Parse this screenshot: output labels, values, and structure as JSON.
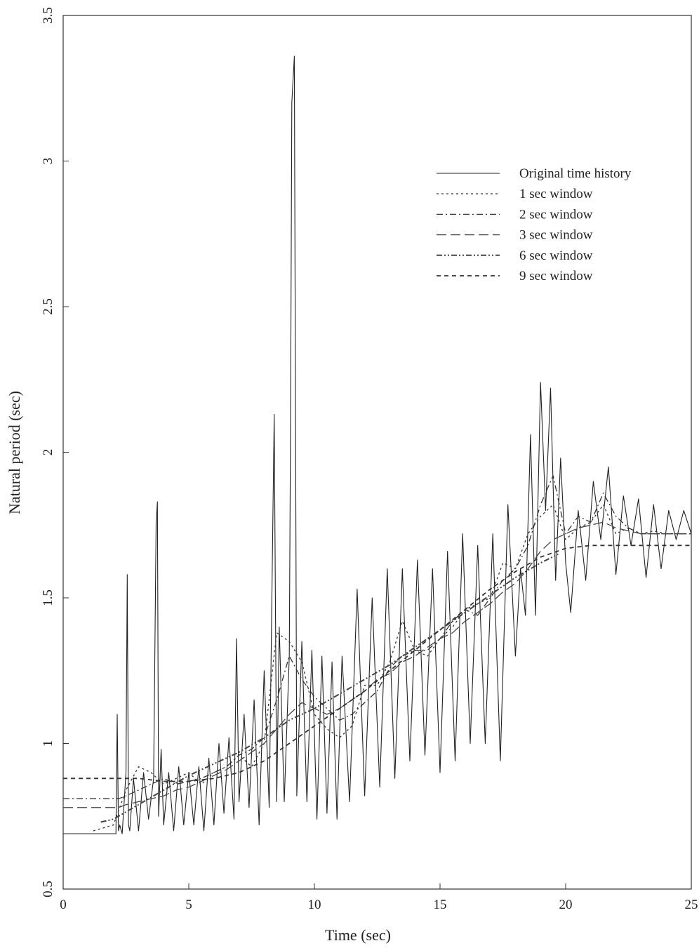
{
  "chart_data": {
    "type": "line",
    "title": "",
    "xlabel": "Time (sec)",
    "ylabel": "Natural period (sec)",
    "xlim": [
      0,
      25
    ],
    "ylim": [
      0.5,
      3.5
    ],
    "xticks": [
      0,
      5,
      10,
      15,
      20,
      25
    ],
    "xtick_labels": [
      "0",
      "5",
      "10",
      "15",
      "20",
      "25"
    ],
    "yticks": [
      0.5,
      1,
      1.5,
      2,
      2.5,
      3,
      3.5
    ],
    "ytick_labels": [
      "0.5",
      "1",
      "1.5",
      "2",
      "2.5",
      "3",
      "3.5"
    ],
    "grid": false,
    "legend_position": "top-right",
    "series": [
      {
        "name": "Original time history",
        "style": "solid",
        "x": [
          0,
          2.1,
          2.15,
          2.2,
          2.25,
          2.35,
          2.5,
          2.55,
          2.6,
          2.65,
          2.8,
          3.0,
          3.2,
          3.4,
          3.6,
          3.7,
          3.75,
          3.8,
          3.9,
          4.0,
          4.2,
          4.4,
          4.6,
          4.8,
          5.0,
          5.2,
          5.4,
          5.6,
          5.8,
          6.0,
          6.2,
          6.4,
          6.6,
          6.8,
          6.9,
          7.0,
          7.2,
          7.4,
          7.6,
          7.8,
          8.0,
          8.2,
          8.4,
          8.5,
          8.6,
          8.8,
          9.0,
          9.05,
          9.1,
          9.2,
          9.3,
          9.5,
          9.7,
          9.9,
          10.1,
          10.3,
          10.5,
          10.7,
          10.9,
          11.1,
          11.4,
          11.7,
          12.0,
          12.3,
          12.6,
          12.9,
          13.2,
          13.5,
          13.8,
          14.1,
          14.4,
          14.7,
          15.0,
          15.3,
          15.6,
          15.9,
          16.2,
          16.5,
          16.8,
          17.1,
          17.4,
          17.7,
          18.0,
          18.2,
          18.4,
          18.6,
          18.8,
          19.0,
          19.2,
          19.4,
          19.6,
          19.8,
          20.0,
          20.2,
          20.5,
          20.8,
          21.1,
          21.4,
          21.7,
          22.0,
          22.3,
          22.6,
          22.9,
          23.2,
          23.5,
          23.8,
          24.1,
          24.4,
          24.7,
          25.0
        ],
        "y": [
          0.69,
          0.69,
          1.1,
          0.7,
          0.72,
          0.69,
          0.9,
          1.58,
          0.72,
          0.7,
          0.88,
          0.7,
          0.9,
          0.74,
          0.88,
          1.76,
          1.83,
          0.75,
          0.98,
          0.72,
          0.9,
          0.7,
          0.92,
          0.72,
          0.9,
          0.72,
          0.92,
          0.7,
          0.95,
          0.72,
          1.0,
          0.76,
          1.02,
          0.74,
          1.36,
          0.8,
          1.1,
          0.78,
          1.15,
          0.72,
          1.25,
          0.78,
          2.13,
          0.8,
          1.4,
          0.8,
          1.3,
          2.1,
          3.2,
          3.36,
          0.82,
          1.35,
          0.8,
          1.32,
          0.74,
          1.3,
          0.76,
          1.28,
          0.74,
          1.3,
          0.8,
          1.53,
          0.82,
          1.5,
          0.85,
          1.6,
          0.88,
          1.6,
          0.94,
          1.63,
          0.96,
          1.6,
          0.9,
          1.66,
          0.94,
          1.72,
          1.0,
          1.68,
          1.0,
          1.72,
          0.94,
          1.82,
          1.3,
          1.6,
          1.44,
          2.06,
          1.44,
          2.24,
          1.8,
          2.22,
          1.56,
          1.98,
          1.62,
          1.45,
          1.8,
          1.56,
          1.9,
          1.7,
          1.95,
          1.58,
          1.85,
          1.68,
          1.84,
          1.57,
          1.82,
          1.6,
          1.8,
          1.7,
          1.8,
          1.72
        ]
      },
      {
        "name": "1 sec window",
        "style": "dotted",
        "x": [
          1.2,
          2.0,
          2.5,
          3.0,
          3.5,
          4.0,
          4.5,
          5.0,
          5.5,
          6.0,
          6.5,
          7.0,
          7.5,
          8.0,
          8.5,
          9.0,
          9.5,
          10.0,
          10.5,
          11.0,
          11.5,
          12.0,
          12.5,
          13.0,
          13.5,
          14.0,
          14.5,
          15.0,
          15.5,
          16.0,
          16.5,
          17.0,
          17.5,
          18.0,
          18.5,
          19.0,
          19.5,
          20.0,
          20.5,
          21.0,
          21.5,
          22.0,
          22.5,
          23.0,
          23.5,
          24.0,
          24.5,
          25.0
        ],
        "y": [
          0.7,
          0.72,
          0.84,
          0.92,
          0.9,
          0.86,
          0.88,
          0.9,
          0.86,
          0.9,
          0.92,
          0.96,
          0.92,
          1.0,
          1.38,
          1.35,
          1.28,
          1.1,
          1.05,
          1.02,
          1.06,
          1.2,
          1.2,
          1.28,
          1.42,
          1.32,
          1.3,
          1.36,
          1.4,
          1.46,
          1.48,
          1.5,
          1.62,
          1.6,
          1.72,
          1.78,
          1.82,
          1.7,
          1.74,
          1.76,
          1.82,
          1.72,
          1.74,
          1.72,
          1.73,
          1.72,
          1.72,
          1.72
        ]
      },
      {
        "name": "2 sec window",
        "style": "dash-dot",
        "x": [
          0,
          2.2,
          2.5,
          3.0,
          3.5,
          4.0,
          4.5,
          5.0,
          5.5,
          6.0,
          6.5,
          7.0,
          7.5,
          8.0,
          8.5,
          9.0,
          9.5,
          10.0,
          10.5,
          11.0,
          11.5,
          12.0,
          12.5,
          13.0,
          13.5,
          14.0,
          14.5,
          15.0,
          15.5,
          16.0,
          16.5,
          17.0,
          17.5,
          18.0,
          18.5,
          19.0,
          19.5,
          20.0,
          20.5,
          21.0,
          21.5,
          22.0,
          22.5,
          23.0,
          23.5,
          24.0,
          24.5,
          25.0
        ],
        "y": [
          0.81,
          0.81,
          0.82,
          0.84,
          0.86,
          0.88,
          0.86,
          0.87,
          0.88,
          0.9,
          0.92,
          0.96,
          0.98,
          1.02,
          1.15,
          1.3,
          1.22,
          1.16,
          1.12,
          1.08,
          1.1,
          1.14,
          1.18,
          1.26,
          1.3,
          1.32,
          1.32,
          1.36,
          1.42,
          1.46,
          1.44,
          1.5,
          1.56,
          1.6,
          1.68,
          1.82,
          1.92,
          1.72,
          1.78,
          1.76,
          1.86,
          1.78,
          1.74,
          1.72,
          1.72,
          1.72,
          1.72,
          1.72
        ]
      },
      {
        "name": "3 sec window",
        "style": "long-dash",
        "x": [
          0,
          2.2,
          2.5,
          3.0,
          3.5,
          4.0,
          4.5,
          5.0,
          5.5,
          6.0,
          6.5,
          7.0,
          7.5,
          8.0,
          8.5,
          9.0,
          9.5,
          10.0,
          10.5,
          11.0,
          11.5,
          12.0,
          12.5,
          13.0,
          13.5,
          14.0,
          14.5,
          15.0,
          15.5,
          16.0,
          16.5,
          17.0,
          17.5,
          18.0,
          18.5,
          19.0,
          19.5,
          20.0,
          20.5,
          21.0,
          21.5,
          22.0,
          22.5,
          23.0,
          23.5,
          24.0,
          24.5,
          25.0
        ],
        "y": [
          0.78,
          0.78,
          0.79,
          0.8,
          0.81,
          0.82,
          0.84,
          0.85,
          0.87,
          0.89,
          0.91,
          0.94,
          0.97,
          1.0,
          1.05,
          1.1,
          1.14,
          1.12,
          1.1,
          1.12,
          1.15,
          1.18,
          1.22,
          1.24,
          1.28,
          1.3,
          1.33,
          1.36,
          1.38,
          1.42,
          1.45,
          1.48,
          1.52,
          1.55,
          1.6,
          1.66,
          1.7,
          1.72,
          1.74,
          1.75,
          1.76,
          1.74,
          1.73,
          1.72,
          1.72,
          1.72,
          1.72,
          1.72
        ]
      },
      {
        "name": "6 sec window",
        "style": "dash-dot-dot",
        "x": [
          1.5,
          2.0,
          3.0,
          4.0,
          5.0,
          6.0,
          7.0,
          8.0,
          9.0,
          10.0,
          11.0,
          12.0,
          13.0,
          14.0,
          15.0,
          16.0,
          17.0,
          18.0,
          19.0,
          19.7
        ],
        "y": [
          0.73,
          0.74,
          0.79,
          0.84,
          0.89,
          0.93,
          0.97,
          1.02,
          1.08,
          1.12,
          1.17,
          1.22,
          1.27,
          1.33,
          1.39,
          1.45,
          1.51,
          1.57,
          1.62,
          1.65
        ]
      },
      {
        "name": "9 sec window",
        "style": "short-dash",
        "x": [
          0,
          2.2,
          3.0,
          4.0,
          5.0,
          6.0,
          7.0,
          8.0,
          9.0,
          10.0,
          11.0,
          12.0,
          13.0,
          14.0,
          15.0,
          16.0,
          17.0,
          18.0,
          19.0,
          20.0,
          21.0,
          22.0,
          23.0,
          24.0,
          25.0
        ],
        "y": [
          0.88,
          0.88,
          0.88,
          0.87,
          0.87,
          0.88,
          0.9,
          0.94,
          1.0,
          1.06,
          1.12,
          1.18,
          1.25,
          1.32,
          1.39,
          1.46,
          1.53,
          1.59,
          1.64,
          1.67,
          1.68,
          1.68,
          1.68,
          1.68,
          1.68
        ]
      }
    ]
  }
}
